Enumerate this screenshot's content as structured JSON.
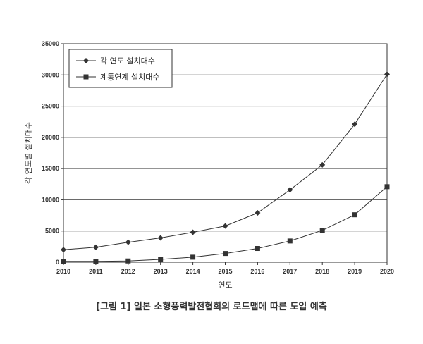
{
  "caption": "[그림 1] 일본 소형풍력발전협회의 로드맵에 따른 도입 예측",
  "chart_data": {
    "type": "line",
    "title": "",
    "xlabel": "연도",
    "ylabel": "각 연도별 설치대수",
    "x": [
      2010,
      2011,
      2012,
      2013,
      2014,
      2015,
      2016,
      2017,
      2018,
      2019,
      2020
    ],
    "ylim": [
      0,
      35000
    ],
    "yticks": [
      0,
      5000,
      10000,
      15000,
      20000,
      25000,
      30000,
      35000
    ],
    "grid": "horizontal",
    "legend_position": "top-left",
    "series": [
      {
        "name": "각 연도 설치대수",
        "marker": "diamond",
        "color": "#333333",
        "values": [
          2000,
          2400,
          3200,
          3900,
          4800,
          5800,
          7900,
          11600,
          15600,
          22100,
          30100
        ]
      },
      {
        "name": "계통연계 설치대수",
        "marker": "square",
        "color": "#333333",
        "values": [
          150,
          150,
          200,
          450,
          800,
          1400,
          2200,
          3400,
          5100,
          7600,
          12100
        ]
      }
    ]
  }
}
